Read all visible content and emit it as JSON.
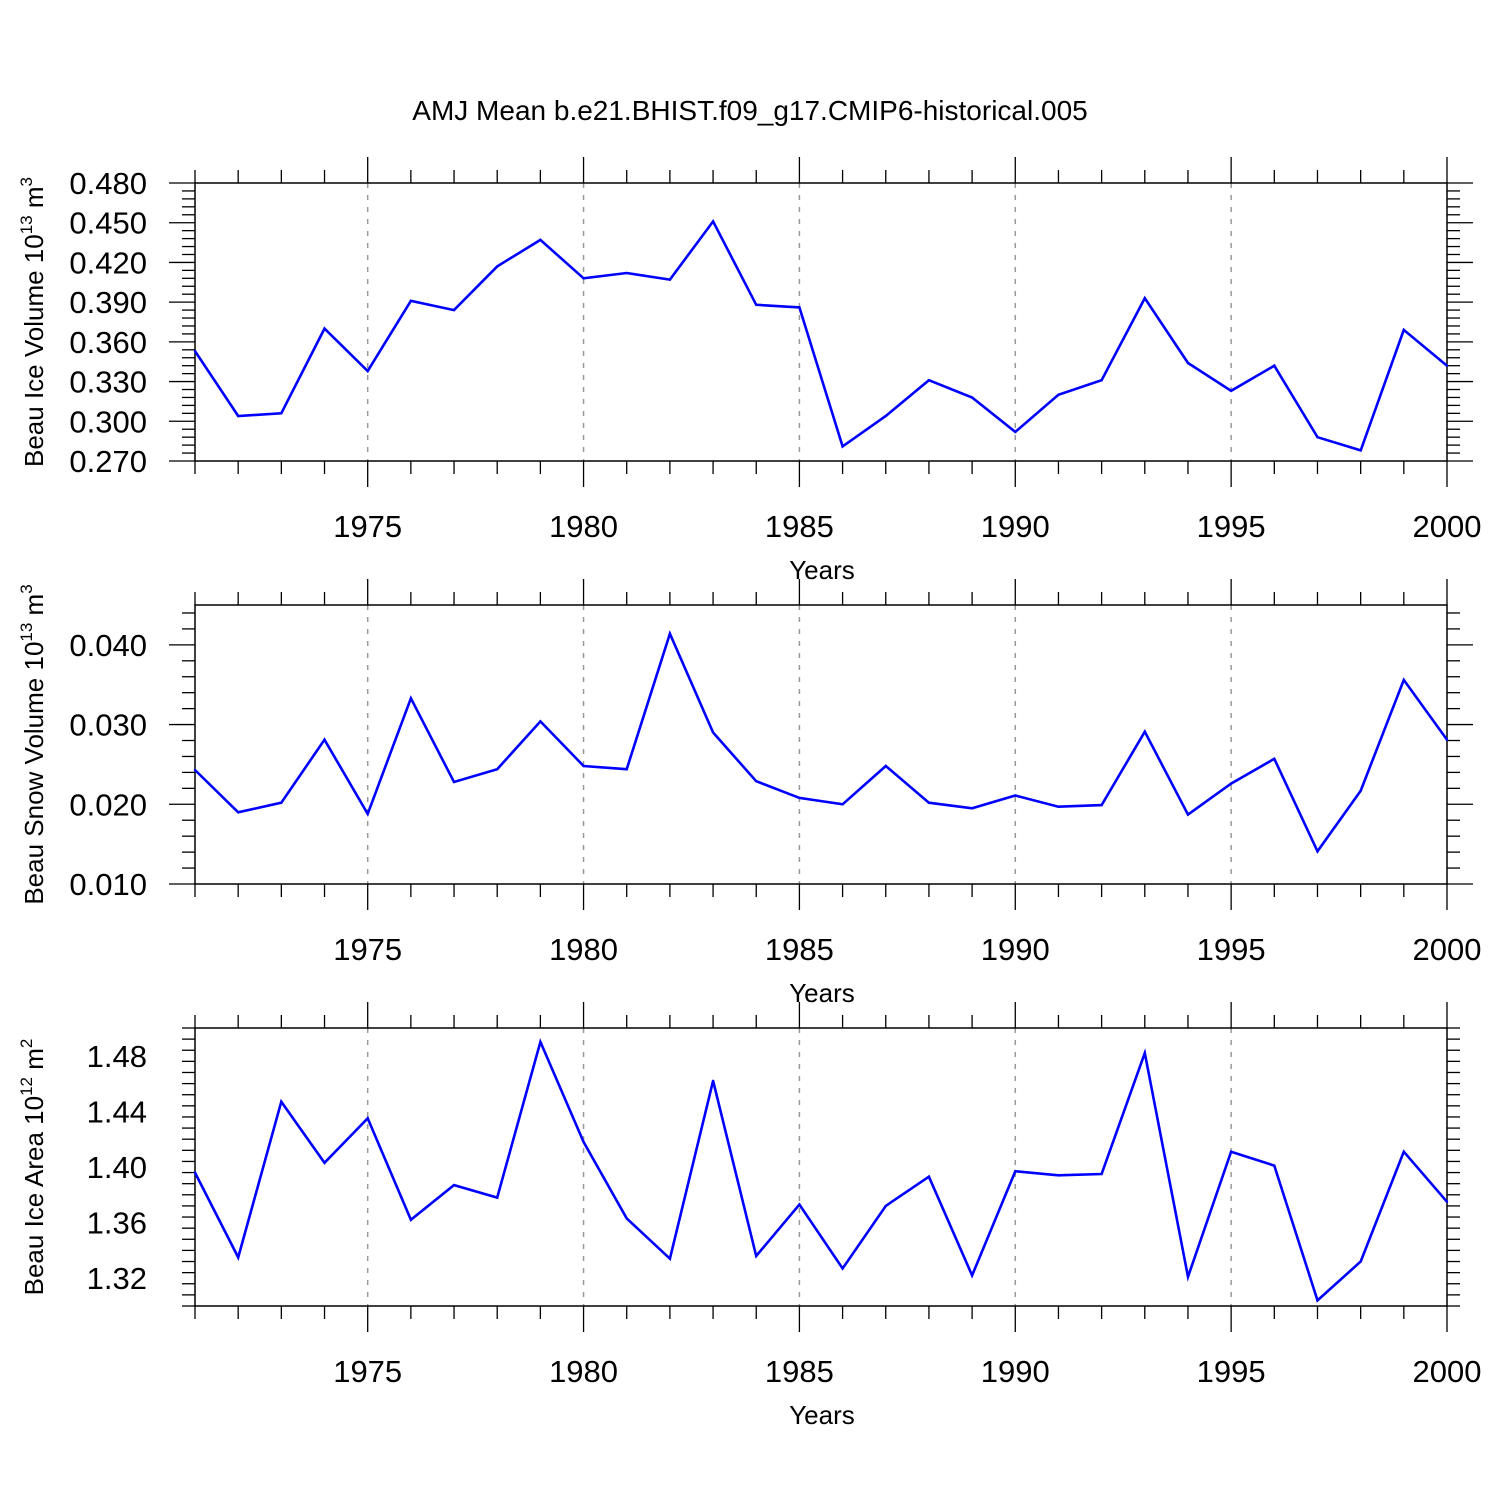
{
  "title": "AMJ Mean b.e21.BHIST.f09_g17.CMIP6-historical.005",
  "colors": {
    "line": "#0000ff",
    "axis": "#000000",
    "grid": "#999999"
  },
  "chart_data": [
    {
      "type": "line",
      "ylabel_main": "Beau Ice Volume 10",
      "ylabel_exp": "13",
      "ylabel_unit": " m",
      "ylabel_unit_exp": "3",
      "xlabel": "Years",
      "xlim": [
        1971,
        2000
      ],
      "ylim": [
        0.27,
        0.48
      ],
      "xticks": [
        1975,
        1980,
        1985,
        1990,
        1995,
        2000
      ],
      "xtick_labels": [
        "1975",
        "1980",
        "1985",
        "1990",
        "1995",
        "2000"
      ],
      "yticks": [
        0.27,
        0.3,
        0.33,
        0.36,
        0.39,
        0.42,
        0.45,
        0.48
      ],
      "ytick_labels": [
        "0.270",
        "0.300",
        "0.330",
        "0.360",
        "0.390",
        "0.420",
        "0.450",
        "0.480"
      ],
      "x": [
        1971,
        1972,
        1973,
        1974,
        1975,
        1976,
        1977,
        1978,
        1979,
        1980,
        1981,
        1982,
        1983,
        1984,
        1985,
        1986,
        1987,
        1988,
        1989,
        1990,
        1991,
        1992,
        1993,
        1994,
        1995,
        1996,
        1997,
        1998,
        1999,
        2000
      ],
      "y": [
        0.353,
        0.304,
        0.306,
        0.37,
        0.338,
        0.391,
        0.384,
        0.417,
        0.437,
        0.408,
        0.412,
        0.407,
        0.451,
        0.388,
        0.386,
        0.281,
        0.304,
        0.331,
        0.318,
        0.292,
        0.32,
        0.331,
        0.393,
        0.344,
        0.323,
        0.342,
        0.288,
        0.278,
        0.369,
        0.342
      ]
    },
    {
      "type": "line",
      "ylabel_main": "Beau Snow Volume 10",
      "ylabel_exp": "13",
      "ylabel_unit": " m",
      "ylabel_unit_exp": "3",
      "xlabel": "Years",
      "xlim": [
        1971,
        2000
      ],
      "ylim": [
        0.01,
        0.045
      ],
      "xticks": [
        1975,
        1980,
        1985,
        1990,
        1995,
        2000
      ],
      "xtick_labels": [
        "1975",
        "1980",
        "1985",
        "1990",
        "1995",
        "2000"
      ],
      "yticks": [
        0.01,
        0.02,
        0.03,
        0.04
      ],
      "ytick_labels": [
        "0.010",
        "0.020",
        "0.030",
        "0.040"
      ],
      "x": [
        1971,
        1972,
        1973,
        1974,
        1975,
        1976,
        1977,
        1978,
        1979,
        1980,
        1981,
        1982,
        1983,
        1984,
        1985,
        1986,
        1987,
        1988,
        1989,
        1990,
        1991,
        1992,
        1993,
        1994,
        1995,
        1996,
        1997,
        1998,
        1999,
        2000
      ],
      "y": [
        0.0243,
        0.019,
        0.0202,
        0.0281,
        0.0188,
        0.0333,
        0.0228,
        0.0244,
        0.0304,
        0.0248,
        0.0244,
        0.0414,
        0.029,
        0.0229,
        0.0208,
        0.02,
        0.0248,
        0.0202,
        0.0195,
        0.0211,
        0.0197,
        0.0199,
        0.0291,
        0.0187,
        0.0226,
        0.0257,
        0.0141,
        0.0217,
        0.0356,
        0.0281
      ]
    },
    {
      "type": "line",
      "ylabel_main": "Beau Ice Area 10",
      "ylabel_exp": "12",
      "ylabel_unit": " m",
      "ylabel_unit_exp": "2",
      "xlabel": "Years",
      "xlim": [
        1971,
        2000
      ],
      "ylim": [
        1.3,
        1.5
      ],
      "xticks": [
        1975,
        1980,
        1985,
        1990,
        1995,
        2000
      ],
      "xtick_labels": [
        "1975",
        "1980",
        "1985",
        "1990",
        "1995",
        "2000"
      ],
      "yticks": [
        1.32,
        1.36,
        1.4,
        1.44,
        1.48
      ],
      "ytick_labels": [
        "1.32",
        "1.36",
        "1.40",
        "1.44",
        "1.48"
      ],
      "x": [
        1971,
        1972,
        1973,
        1974,
        1975,
        1976,
        1977,
        1978,
        1979,
        1980,
        1981,
        1982,
        1983,
        1984,
        1985,
        1986,
        1987,
        1988,
        1989,
        1990,
        1991,
        1992,
        1993,
        1994,
        1995,
        1996,
        1997,
        1998,
        1999,
        2000
      ],
      "y": [
        1.396,
        1.335,
        1.447,
        1.403,
        1.435,
        1.362,
        1.387,
        1.378,
        1.49,
        1.418,
        1.363,
        1.334,
        1.462,
        1.336,
        1.373,
        1.327,
        1.372,
        1.393,
        1.322,
        1.397,
        1.394,
        1.395,
        1.482,
        1.321,
        1.411,
        1.401,
        1.304,
        1.332,
        1.411,
        1.375
      ]
    }
  ]
}
